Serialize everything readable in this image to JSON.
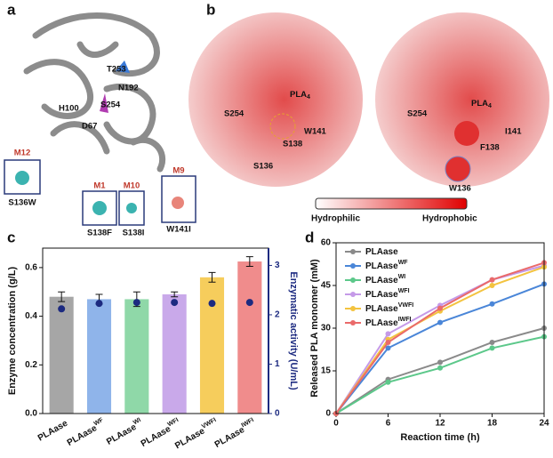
{
  "panel_a": {
    "label": "a",
    "residues": [
      "T253",
      "N192",
      "S254",
      "H100",
      "D67"
    ],
    "insets": [
      {
        "tag": "M12",
        "mutation": "S136W"
      },
      {
        "tag": "M1",
        "mutation": "S138F"
      },
      {
        "tag": "M10",
        "mutation": "S138I"
      },
      {
        "tag": "M9",
        "mutation": "W141I"
      }
    ]
  },
  "panel_b": {
    "label": "b",
    "surfaces": [
      {
        "ligand": "PLA",
        "ligand_sub": "4",
        "residues": [
          "S254",
          "W141",
          "S138",
          "S136"
        ]
      },
      {
        "ligand": "PLA",
        "ligand_sub": "4",
        "residues": [
          "S254",
          "I141",
          "F138",
          "W136"
        ]
      }
    ],
    "scale": [
      "Hydrophilic",
      "Hydrophobic"
    ]
  },
  "chart_data": [
    {
      "type": "bar",
      "label": "c",
      "ylabel": "Enzyme concentration (g/L)",
      "y2label": "Enzymatic activity (U/mL)",
      "categories": [
        {
          "text": "PLAase"
        },
        {
          "text": "PLAase",
          "sup": "WF"
        },
        {
          "text": "PLAase",
          "sup": "WI"
        },
        {
          "text": "PLAase",
          "sup": "WFI"
        },
        {
          "text": "PLAase",
          "sup": "VWFI"
        },
        {
          "text": "PLAase",
          "sup": "IWFI"
        }
      ],
      "values": [
        0.48,
        0.47,
        0.47,
        0.49,
        0.56,
        0.625
      ],
      "errors": [
        0.02,
        0.02,
        0.03,
        0.01,
        0.02,
        0.02
      ],
      "colors": [
        "#a6a6a6",
        "#8fb4ea",
        "#8fd8a8",
        "#c9a9ea",
        "#f6cd5c",
        "#f08c8c"
      ],
      "y2_values": [
        2.12,
        2.23,
        2.25,
        2.25,
        2.23,
        2.25
      ],
      "y2_color": "#1c2a80",
      "ylim": [
        0,
        0.68
      ],
      "yticks": [
        {
          "value": 0,
          "label": "0.0"
        },
        {
          "value": 0.2,
          "label": "0.2"
        },
        {
          "value": 0.4,
          "label": "0.4"
        },
        {
          "value": 0.6,
          "label": "0.6"
        }
      ],
      "y2lim": [
        0,
        3.35
      ],
      "y2ticks": [
        0,
        1,
        2,
        3
      ]
    },
    {
      "type": "line",
      "label": "d",
      "xlabel": "Reaction time (h)",
      "ylabel": "Released PLA monomer (mM)",
      "x": [
        0,
        6,
        12,
        18,
        24
      ],
      "xlim": [
        0,
        24
      ],
      "xticks": [
        0,
        6,
        12,
        18,
        24
      ],
      "ylim": [
        0,
        60
      ],
      "yticks": [
        0,
        15,
        30,
        45,
        60
      ],
      "series": [
        {
          "name": {
            "text": "PLAase"
          },
          "color": "#8a8a8a",
          "values": [
            0,
            12,
            18,
            25,
            30
          ]
        },
        {
          "name": {
            "text": "PLAase",
            "sup": "WF"
          },
          "color": "#4a86d8",
          "values": [
            0,
            23,
            32,
            38.5,
            45.5
          ]
        },
        {
          "name": {
            "text": "PLAase",
            "sup": "WI"
          },
          "color": "#5cc88a",
          "values": [
            0,
            11,
            16,
            23,
            27
          ]
        },
        {
          "name": {
            "text": "PLAase",
            "sup": "WFI"
          },
          "color": "#c59ae8",
          "values": [
            0,
            28,
            38,
            47,
            52
          ]
        },
        {
          "name": {
            "text": "PLAase",
            "sup": "VWFI"
          },
          "color": "#f3c33f",
          "values": [
            0,
            26,
            36,
            45,
            51.5
          ]
        },
        {
          "name": {
            "text": "PLAase",
            "sup": "IWFI"
          },
          "color": "#ea6a6a",
          "values": [
            0,
            25,
            37,
            47,
            53
          ]
        }
      ]
    }
  ]
}
